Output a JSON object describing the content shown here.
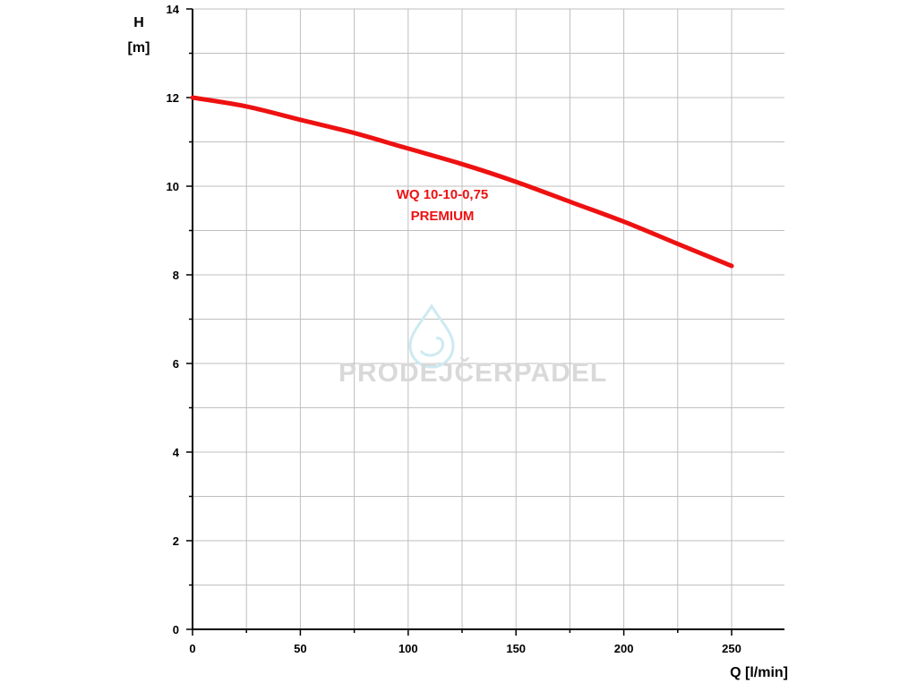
{
  "colors": {
    "curve": "#ee1111",
    "grid": "#bfbfbf",
    "axis": "#000000",
    "watermark_text": "#d9d9d9",
    "watermark_drop": "#cdeaf2"
  },
  "watermark": {
    "text_a": "PRODEJ",
    "text_b": "ČERPADEL"
  },
  "chart_data": {
    "type": "line",
    "title": "",
    "xlabel": "Q [l/min]",
    "ylabel_line1": "H",
    "ylabel_line2": "[m]",
    "xlim": [
      0,
      275
    ],
    "ylim": [
      0,
      14
    ],
    "x_ticks": [
      0,
      50,
      100,
      150,
      200,
      250
    ],
    "y_ticks": [
      0,
      2,
      4,
      6,
      8,
      10,
      12,
      14
    ],
    "x_minor_step": 25,
    "y_minor_step": 1,
    "grid": true,
    "series": [
      {
        "name": "WQ 10-10-0,75 PREMIUM",
        "x": [
          0,
          25,
          50,
          75,
          100,
          125,
          150,
          175,
          200,
          225,
          250
        ],
        "y": [
          12.0,
          11.8,
          11.5,
          11.2,
          10.85,
          10.5,
          10.1,
          9.65,
          9.2,
          8.7,
          8.2
        ]
      }
    ],
    "annotation": {
      "line1": "WQ 10-10-0,75",
      "line2": "PREMIUM"
    }
  }
}
